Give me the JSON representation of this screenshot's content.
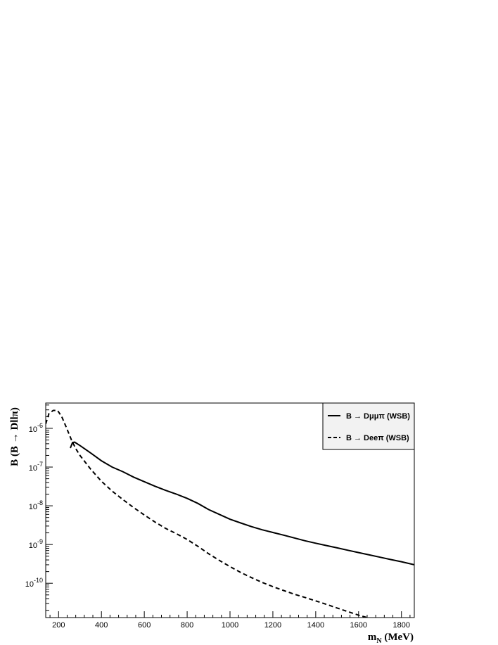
{
  "chart_data": {
    "type": "line",
    "title": "",
    "xlabel": "m_N (MeV)",
    "ylabel": "B (B → Dllπ)",
    "xscale": "linear",
    "yscale": "log",
    "xlim": [
      140,
      1860
    ],
    "ylim": [
      1.3e-11,
      4.5e-06
    ],
    "x_ticks": [
      200,
      400,
      600,
      800,
      1000,
      1200,
      1400,
      1600,
      1800
    ],
    "x_tick_labels": [
      "200",
      "400",
      "600",
      "800",
      "1000",
      "1200",
      "1400",
      "1600",
      "1800"
    ],
    "y_ticks": [
      1e-10,
      1e-09,
      1e-08,
      1e-07,
      1e-06
    ],
    "y_tick_labels": [
      {
        "base": "10",
        "exp": "-10"
      },
      {
        "base": "10",
        "exp": "-9"
      },
      {
        "base": "10",
        "exp": "-8"
      },
      {
        "base": "10",
        "exp": "-7"
      },
      {
        "base": "10",
        "exp": "-6"
      }
    ],
    "grid": false,
    "legend_position": "top-right",
    "series": [
      {
        "name": "B → Dμμπ (WSB)",
        "style": "solid",
        "color": "#000000",
        "x": [
          255,
          265,
          275,
          300,
          350,
          400,
          450,
          500,
          550,
          600,
          650,
          700,
          750,
          800,
          850,
          900,
          950,
          1000,
          1050,
          1100,
          1150,
          1200,
          1250,
          1300,
          1350,
          1400,
          1450,
          1500,
          1550,
          1600,
          1650,
          1700,
          1750,
          1800,
          1860
        ],
        "y": [
          3.1e-07,
          4.3e-07,
          4.4e-07,
          3.6e-07,
          2.3e-07,
          1.45e-07,
          1e-07,
          7.6e-08,
          5.5e-08,
          4.2e-08,
          3.2e-08,
          2.5e-08,
          2e-08,
          1.55e-08,
          1.15e-08,
          8e-09,
          6e-09,
          4.5e-09,
          3.6e-09,
          2.9e-09,
          2.4e-09,
          2.05e-09,
          1.75e-09,
          1.48e-09,
          1.25e-09,
          1.08e-09,
          9.4e-10,
          8.2e-10,
          7.1e-10,
          6.2e-10,
          5.4e-10,
          4.7e-10,
          4.1e-10,
          3.6e-10,
          3e-10
        ]
      },
      {
        "name": "B → Deeπ (WSB)",
        "style": "dashed",
        "color": "#000000",
        "x": [
          140,
          155,
          175,
          195,
          215,
          235,
          260,
          280,
          300,
          350,
          400,
          450,
          500,
          550,
          600,
          650,
          700,
          750,
          800,
          850,
          900,
          950,
          1000,
          1050,
          1100,
          1150,
          1200,
          1250,
          1300,
          1350,
          1400,
          1450,
          1500,
          1550,
          1600,
          1650,
          1680
        ],
        "y": [
          1.3e-06,
          2.4e-06,
          2.9e-06,
          2.9e-06,
          2e-06,
          1.1e-06,
          5e-07,
          3e-07,
          2e-07,
          8.8e-08,
          4.3e-08,
          2.4e-08,
          1.45e-08,
          9e-09,
          5.8e-09,
          3.8e-09,
          2.6e-09,
          1.9e-09,
          1.35e-09,
          9e-10,
          5.8e-10,
          3.9e-10,
          2.7e-10,
          1.9e-10,
          1.4e-10,
          1.05e-10,
          8.2e-11,
          6.5e-11,
          5.2e-11,
          4.3e-11,
          3.5e-11,
          2.85e-11,
          2.3e-11,
          1.85e-11,
          1.5e-11,
          1.25e-11,
          1.13e-11
        ]
      }
    ]
  }
}
